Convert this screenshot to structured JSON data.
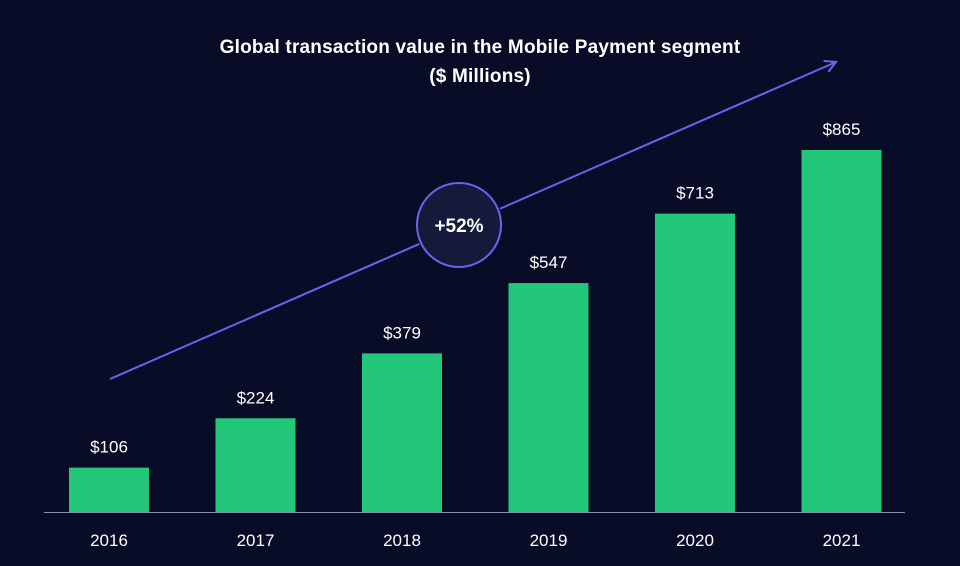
{
  "chart_data": {
    "type": "bar",
    "title": "Global transaction value in the Mobile Payment segment",
    "subtitle": "($ Millions)",
    "categories": [
      "2016",
      "2017",
      "2018",
      "2019",
      "2020",
      "2021"
    ],
    "values": [
      106,
      224,
      379,
      547,
      713,
      865
    ],
    "value_labels": [
      "$106",
      "$224",
      "$379",
      "$547",
      "$713",
      "$865"
    ],
    "ylim": [
      0,
      865
    ],
    "xlabel": "",
    "ylabel": "",
    "grid": false,
    "legend": "none",
    "annotation": "+52%",
    "colors": {
      "background": "#080c26",
      "bar": "#22c77a",
      "arrow": "#6b63f0",
      "text": "#ffffff",
      "axis": "#8b8fb5"
    }
  }
}
